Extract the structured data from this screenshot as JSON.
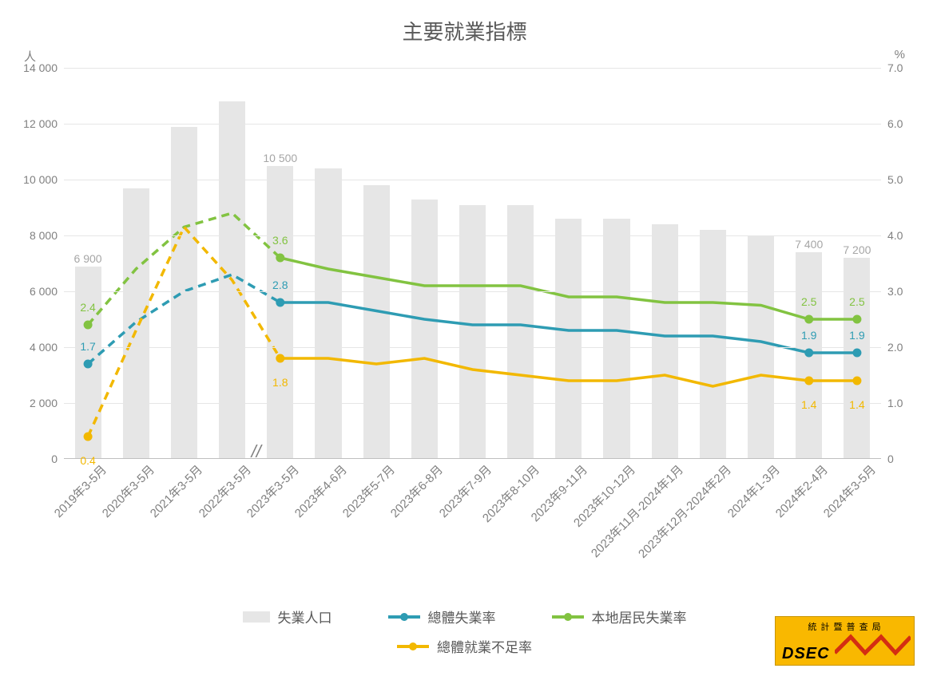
{
  "title": "主要就業指標",
  "y1_axis": {
    "label": "人",
    "min": 0,
    "max": 14000,
    "step": 2000,
    "tick_format": "space_thousands"
  },
  "y2_axis": {
    "label": "%",
    "min": 0,
    "max": 7.0,
    "step": 1.0,
    "tick_format": "one_decimal_or_zero"
  },
  "categories": [
    "2019年3-5月",
    "2020年3-5月",
    "2021年3-5月",
    "2022年3-5月",
    "2023年3-5月",
    "2023年4-6月",
    "2023年5-7月",
    "2023年6-8月",
    "2023年7-9月",
    "2023年8-10月",
    "2023年9-11月",
    "2023年10-12月",
    "2023年11月-2024年1月",
    "2023年12月-2024年2月",
    "2024年1-3月",
    "2024年2-4月",
    "2024年3-5月"
  ],
  "axis_break_after_index": 3,
  "bars": {
    "name": "失業人口",
    "color": "#e6e6e6",
    "width_frac": 0.55,
    "values": [
      6900,
      9700,
      11900,
      12800,
      10500,
      10400,
      9800,
      9300,
      9100,
      9100,
      8600,
      8600,
      8400,
      8200,
      8000,
      7400,
      7200
    ],
    "labels": {
      "0": "6 900",
      "4": "10 500",
      "15": "7 400",
      "16": "7 200"
    },
    "label_color": "#a6a6a6"
  },
  "lines": [
    {
      "name": "本地居民失業率",
      "color": "#82c341",
      "width": 3.5,
      "values": [
        2.4,
        3.4,
        4.15,
        4.4,
        3.6,
        3.4,
        3.25,
        3.1,
        3.1,
        3.1,
        2.9,
        2.9,
        2.8,
        2.8,
        2.75,
        2.5,
        2.5
      ],
      "marker_indices": [
        0,
        4,
        15,
        16
      ],
      "labels": {
        "0": "2.4",
        "4": "3.6",
        "15": "2.5",
        "16": "2.5"
      },
      "label_offset_y": -14
    },
    {
      "name": "總體失業率",
      "color": "#2e9cb3",
      "width": 3.5,
      "values": [
        1.7,
        2.45,
        3.0,
        3.3,
        2.8,
        2.8,
        2.65,
        2.5,
        2.4,
        2.4,
        2.3,
        2.3,
        2.2,
        2.2,
        2.1,
        1.9,
        1.9
      ],
      "marker_indices": [
        0,
        4,
        15,
        16
      ],
      "labels": {
        "0": "1.7",
        "4": "2.8",
        "15": "1.9",
        "16": "1.9"
      },
      "label_offset_y": -14
    },
    {
      "name": "總體就業不足率",
      "color": "#f2b800",
      "width": 3.5,
      "values": [
        0.4,
        2.3,
        4.15,
        3.2,
        1.8,
        1.8,
        1.7,
        1.8,
        1.6,
        1.5,
        1.4,
        1.4,
        1.5,
        1.3,
        1.5,
        1.4,
        1.4
      ],
      "marker_indices": [
        0,
        4,
        15,
        16
      ],
      "labels": {
        "0": "0.4",
        "4": "1.8",
        "15": "1.4",
        "16": "1.4"
      },
      "label_offset_y": 22
    }
  ],
  "legend_order": [
    "bars",
    1,
    0,
    2
  ],
  "legend_labels": {
    "bars": "失業人口",
    "0": "本地居民失業率",
    "1": "總體失業率",
    "2": "總體就業不足率"
  },
  "logo": {
    "top_text": "統 計 暨 普 查 局",
    "main_text": "DSEC",
    "bg_color": "#f9b800",
    "zig_color": "#d42e12"
  },
  "colors": {
    "background": "#ffffff",
    "grid": "#e6e6e6",
    "axis_text": "#808080",
    "title_text": "#595959"
  },
  "font_sizes": {
    "title": 26,
    "axis_label": 15,
    "tick": 14,
    "legend": 17,
    "data_label": 14
  }
}
